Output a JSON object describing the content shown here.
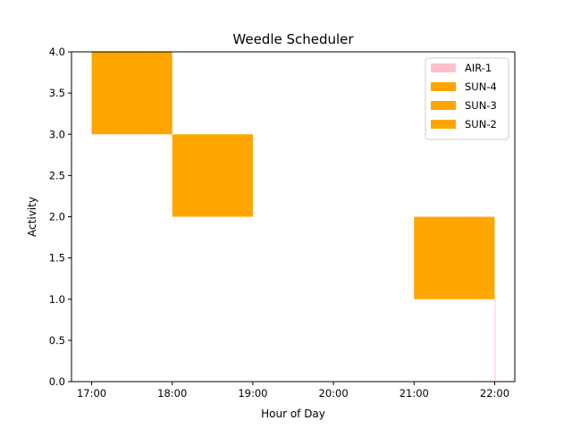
{
  "chart_data": {
    "type": "bar",
    "title": "Weedle Scheduler",
    "xlabel": "Hour of Day",
    "ylabel": "Activity",
    "xlim": [
      "16:45",
      "22:15"
    ],
    "ylim": [
      0,
      4
    ],
    "x_ticks": [
      "17:00",
      "18:00",
      "19:00",
      "20:00",
      "21:00",
      "22:00"
    ],
    "y_ticks": [
      "0.0",
      "0.5",
      "1.0",
      "1.5",
      "2.0",
      "2.5",
      "3.0",
      "3.5",
      "4.0"
    ],
    "grid": false,
    "legend_position": "top-right",
    "series": [
      {
        "name": "AIR-1",
        "color": "#ffc0cb",
        "bars": [
          {
            "start": "22:00",
            "end": "22:00",
            "bottom": 0,
            "top": 1
          }
        ]
      },
      {
        "name": "SUN-4",
        "color": "#ffa500",
        "bars": [
          {
            "start": "17:00",
            "end": "18:00",
            "bottom": 3,
            "top": 4
          }
        ]
      },
      {
        "name": "SUN-3",
        "color": "#ffa500",
        "bars": [
          {
            "start": "18:00",
            "end": "19:00",
            "bottom": 2,
            "top": 3
          }
        ]
      },
      {
        "name": "SUN-2",
        "color": "#ffa500",
        "bars": [
          {
            "start": "21:00",
            "end": "22:00",
            "bottom": 1,
            "top": 2
          }
        ]
      }
    ]
  }
}
